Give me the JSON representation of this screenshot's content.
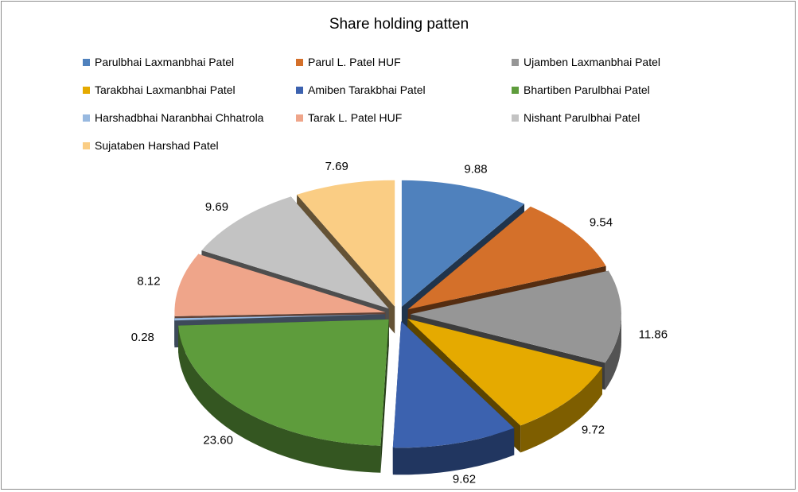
{
  "chart_data": {
    "type": "pie",
    "title": "Share holding patten",
    "legend_position": "top",
    "exploded": true,
    "three_d": true,
    "series": [
      {
        "name": "Parulbhai Laxmanbhai Patel",
        "value": 9.88,
        "label": "9.88",
        "color": "#4F81BD"
      },
      {
        "name": "Parul L. Patel HUF",
        "value": 9.54,
        "label": "9.54",
        "color": "#D4702A"
      },
      {
        "name": "Ujamben Laxmanbhai Patel",
        "value": 11.86,
        "label": "11.86",
        "color": "#969696"
      },
      {
        "name": "Tarakbhai Laxmanbhai Patel",
        "value": 9.72,
        "label": "9.72",
        "color": "#E5AA00"
      },
      {
        "name": "Amiben Tarakbhai Patel",
        "value": 9.62,
        "label": "9.62",
        "color": "#3C62AF"
      },
      {
        "name": "Bhartiben Parulbhai Patel",
        "value": 23.6,
        "label": "23.60",
        "color": "#5E9C3C"
      },
      {
        "name": "Harshadbhai Naranbhai Chhatrola",
        "value": 0.28,
        "label": "0.28",
        "color": "#98B9E0"
      },
      {
        "name": "Tarak L. Patel HUF",
        "value": 8.12,
        "label": "8.12",
        "color": "#EFA58A"
      },
      {
        "name": "Nishant Parulbhai Patel",
        "value": 9.69,
        "label": "9.69",
        "color": "#C3C3C3"
      },
      {
        "name": "Sujataben Harshad Patel",
        "value": 7.69,
        "label": "7.69",
        "color": "#FACD84"
      }
    ]
  }
}
